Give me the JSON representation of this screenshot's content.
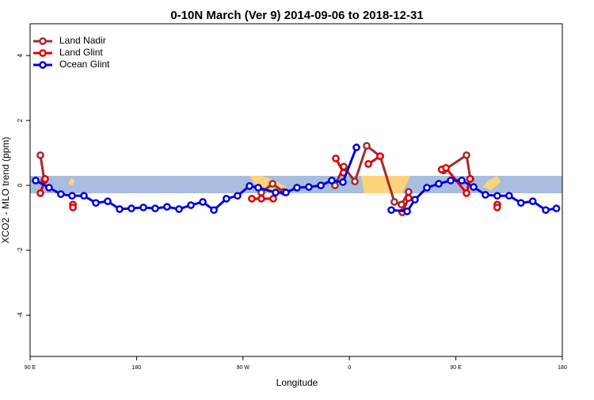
{
  "chart_data": {
    "type": "line",
    "title": "0-10N March (Ver 9)   2014-09-06 to 2018-12-31",
    "xlabel": "Longitude",
    "ylabel": "XCO2 - MLO trend (ppm)",
    "xlim": [
      90,
      540
    ],
    "ylim": [
      -5.27,
      4.98
    ],
    "xticks": [
      {
        "value": 90,
        "label": "90 E"
      },
      {
        "value": 180,
        "label": "180"
      },
      {
        "value": 270,
        "label": "90 W"
      },
      {
        "value": 360,
        "label": "0"
      },
      {
        "value": 450,
        "label": "90 E"
      },
      {
        "value": 540,
        "label": "180"
      }
    ],
    "yticks": [
      -4,
      -2,
      0,
      2,
      4
    ],
    "legend": "upper left",
    "series": [
      {
        "name": "Land Nadir",
        "color": "#a52a2a",
        "x": [
          98.7,
          102,
          null,
          285.5,
          295,
          304.3,
          null,
          347.8,
          355.2,
          364.6,
          374.6,
          386,
          398,
          404,
          410,
          null,
          439.6,
          459,
          462.3
        ],
        "values": [
          0.93,
          0.15,
          null,
          -0.22,
          0.05,
          -0.2,
          null,
          0,
          0.58,
          0.12,
          1.22,
          0.9,
          -0.51,
          -0.59,
          -0.2,
          null,
          0.46,
          0.93,
          0.2
        ]
      },
      {
        "name": "Land Glint",
        "color": "#e00000",
        "x": [
          98.7,
          102.7,
          null,
          126.2,
          null,
          126.2,
          null,
          277.5,
          285.5,
          295.6,
          null,
          348.5,
          355,
          null,
          376,
          386,
          null,
          404.7,
          410,
          null,
          438,
          441.6,
          459,
          462,
          null,
          485,
          null,
          485
        ],
        "values": [
          -0.24,
          0.2,
          null,
          -0.59,
          null,
          -0.68,
          null,
          -0.41,
          -0.41,
          -0.41,
          null,
          0.83,
          0.39,
          null,
          0.66,
          0.9,
          null,
          -0.83,
          -0.39,
          null,
          0.49,
          0.54,
          -0.24,
          0.2,
          null,
          -0.59,
          null,
          -0.68
        ]
      },
      {
        "name": "Ocean Glint",
        "color": "#0000e0",
        "x": [
          94.7,
          106,
          116,
          125.5,
          135.5,
          145.6,
          155.6,
          165.7,
          175.7,
          185.8,
          195.8,
          205.8,
          215.9,
          226,
          236,
          245.4,
          256,
          265.4,
          275.5,
          282.9,
          297.6,
          306.3,
          315.7,
          325.7,
          335.8,
          345.1,
          354.5,
          365.9,
          null,
          395.4,
          408.8,
          415.4,
          425.5,
          435.5,
          445.6,
          455,
          465,
          475,
          485,
          495,
          505,
          515,
          526,
          535
        ],
        "values": [
          0.15,
          -0.07,
          -0.27,
          -0.32,
          -0.32,
          -0.54,
          -0.49,
          -0.73,
          -0.71,
          -0.68,
          -0.71,
          -0.66,
          -0.73,
          -0.61,
          -0.51,
          -0.76,
          -0.41,
          -0.32,
          -0.02,
          -0.07,
          -0.22,
          -0.22,
          -0.07,
          -0.05,
          0,
          0.15,
          0.1,
          1.17,
          null,
          -0.76,
          -0.8,
          -0.44,
          -0.07,
          0.05,
          0.15,
          0.15,
          -0.05,
          -0.29,
          -0.32,
          -0.32,
          -0.54,
          -0.49,
          -0.76,
          -0.71
        ]
      }
    ]
  }
}
